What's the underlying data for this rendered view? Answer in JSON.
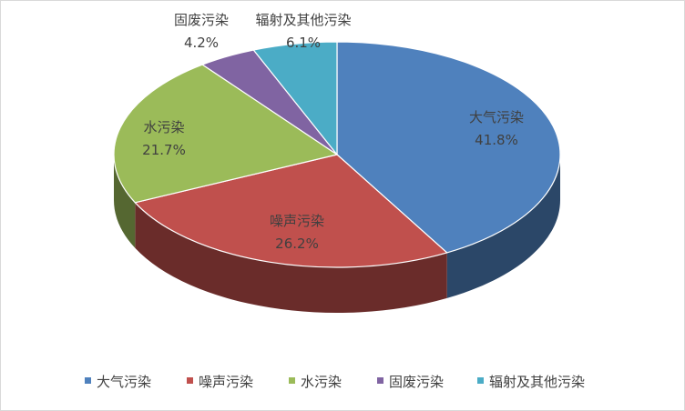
{
  "chart_data": {
    "type": "pie",
    "title": "",
    "categories": [
      "大气污染",
      "噪声污染",
      "水污染",
      "固废污染",
      "辐射及其他污染"
    ],
    "values": [
      41.8,
      26.2,
      21.7,
      4.2,
      6.1
    ],
    "value_labels": [
      "41.8%",
      "26.2%",
      "21.7%",
      "4.2%",
      "6.1%"
    ],
    "colors": [
      "#4f81bd",
      "#c0504d",
      "#9bbb59",
      "#8064a2",
      "#4bacc6"
    ],
    "style": "3d-pie",
    "legend": "bottom"
  }
}
